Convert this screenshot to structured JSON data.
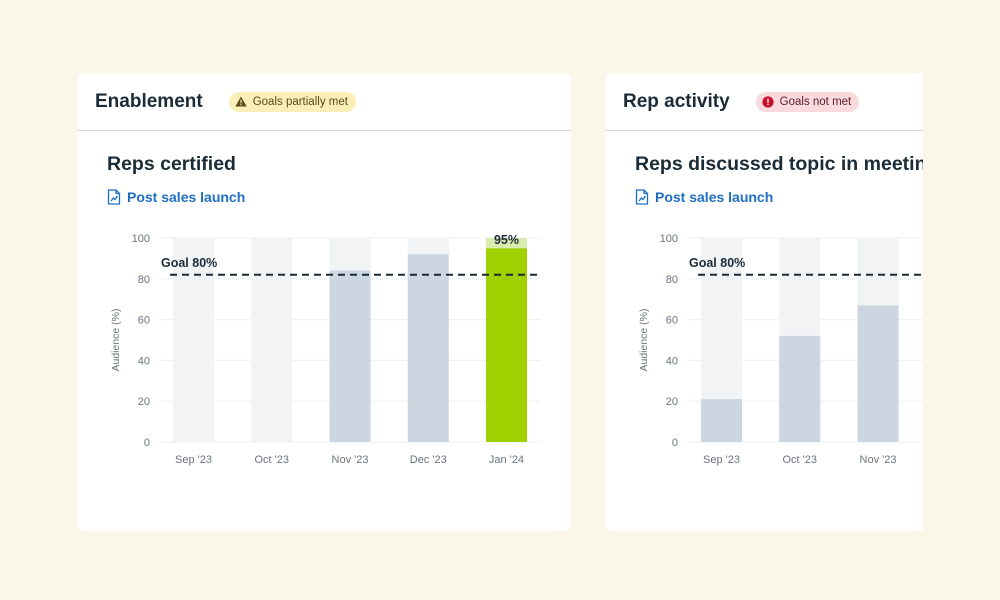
{
  "cards": [
    {
      "title": "Enablement",
      "status": {
        "label": "Goals partially met",
        "kind": "warn",
        "icon": "warning-triangle-icon"
      },
      "link_label": "Post sales launch",
      "link_icon": "document-chart-icon",
      "chart_data": {
        "type": "bar",
        "title": "Reps certified",
        "xlabel": "",
        "ylabel": "Audience (%)",
        "ylim": [
          0,
          100
        ],
        "yticks": [
          0,
          20,
          40,
          60,
          80,
          100
        ],
        "categories": [
          "Sep '23",
          "Oct '23",
          "Nov '23",
          "Dec '23",
          "Jan '24"
        ],
        "values": [
          0,
          0,
          84,
          92,
          95
        ],
        "goal": {
          "value": 80,
          "label": "Goal 80%"
        },
        "data_labels": [
          "",
          "",
          "",
          "",
          "95%"
        ],
        "colors": {
          "met": "#9fd000",
          "met_label_bg": "#d9ecb0",
          "bar": "#ccd6e0",
          "track": "#f1f3f5",
          "goal_line": "#1b2b38"
        }
      }
    },
    {
      "title": "Rep activity",
      "status": {
        "label": "Goals not met",
        "kind": "err",
        "icon": "alert-circle-icon"
      },
      "link_label": "Post sales launch",
      "link_icon": "document-chart-icon",
      "chart_data": {
        "type": "bar",
        "title": "Reps discussed topic in meetings",
        "xlabel": "",
        "ylabel": "Audience (%)",
        "ylim": [
          0,
          100
        ],
        "yticks": [
          0,
          20,
          40,
          60,
          80,
          100
        ],
        "categories": [
          "Sep '23",
          "Oct '23",
          "Nov '23"
        ],
        "values": [
          21,
          52,
          67
        ],
        "goal": {
          "value": 80,
          "label": "Goal 80%"
        },
        "data_labels": [
          "",
          "",
          ""
        ],
        "colors": {
          "met": "#9fd000",
          "met_label_bg": "#d9ecb0",
          "bar": "#ccd6e0",
          "track": "#f1f3f5",
          "goal_line": "#1b2b38"
        }
      }
    }
  ]
}
